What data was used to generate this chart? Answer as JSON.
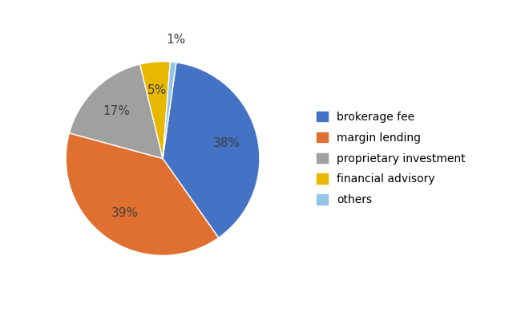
{
  "labels": [
    "brokerage fee",
    "margin lending",
    "proprietary investment",
    "financial advisory",
    "others"
  ],
  "values": [
    38,
    39,
    17,
    5,
    1
  ],
  "colors": [
    "#4472c4",
    "#e07030",
    "#a0a0a0",
    "#e8b800",
    "#92c5e8"
  ],
  "pct_labels": [
    "38%",
    "39%",
    "17%",
    "5%",
    "1%"
  ],
  "title_fontsize": 16,
  "label_fontsize": 11,
  "legend_fontsize": 10,
  "startangle": 82
}
